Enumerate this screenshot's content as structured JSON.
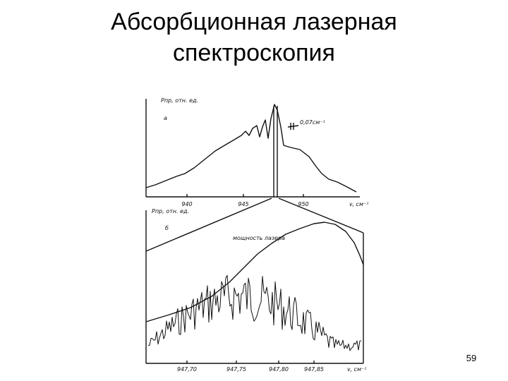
{
  "header": {
    "title_lines": [
      "Абсорбционная лазерная",
      "спектроскопия"
    ]
  },
  "figure": {
    "panel_a": {
      "y_label": "Pпр, отн. ед.",
      "letter": "а",
      "annotation": "0,07см⁻¹",
      "x_ticks": [
        "940",
        "945",
        "950"
      ],
      "x_label": "ν, см⁻¹"
    },
    "panel_b": {
      "y_label": "Pпр, отн. ед.",
      "letter": "б",
      "annotation": "мощность лазера",
      "x_ticks": [
        "947,70",
        "947,75",
        "947,80",
        "947,85"
      ],
      "x_label": "ν, см⁻¹"
    }
  },
  "footer": {
    "page_number": "59"
  }
}
